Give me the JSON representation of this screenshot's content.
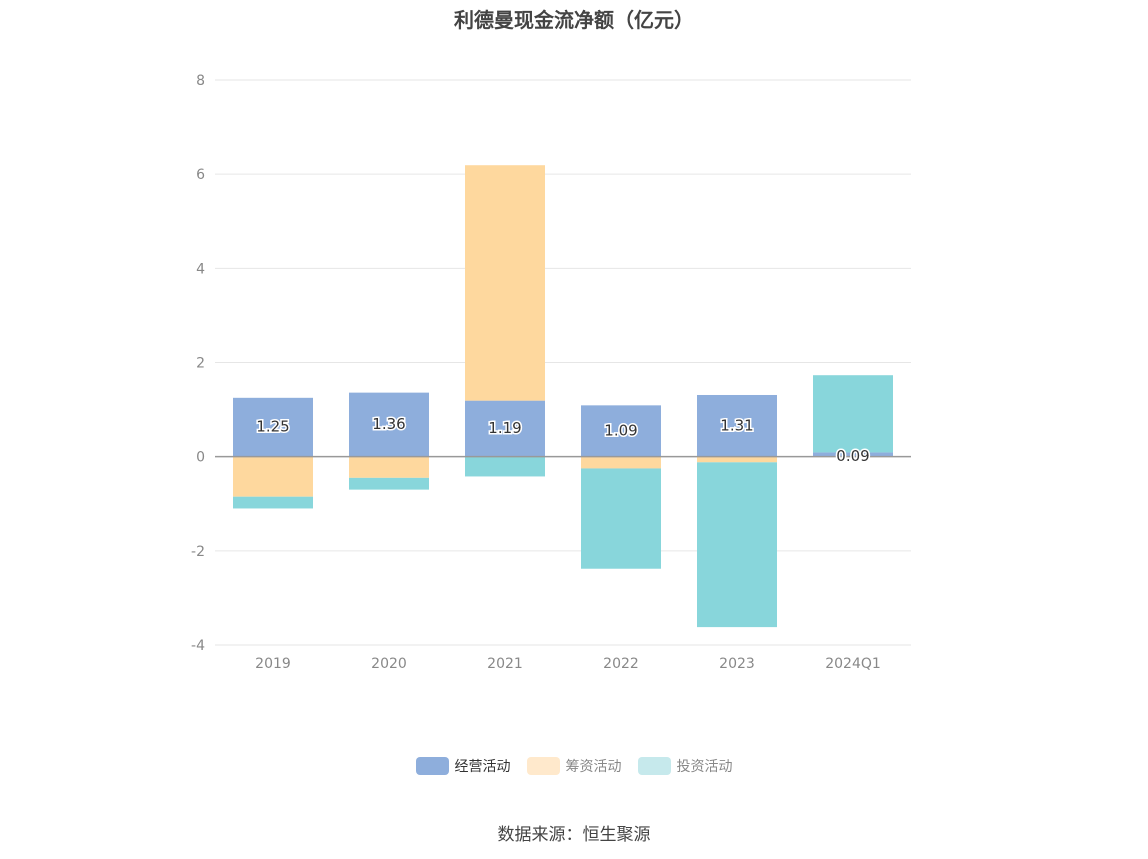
{
  "chart_data": {
    "type": "bar",
    "stacked": true,
    "title": "利德曼现金流净额（亿元）",
    "categories": [
      "2019",
      "2020",
      "2021",
      "2022",
      "2023",
      "2024Q1"
    ],
    "series": [
      {
        "name": "经营活动",
        "color": "#8eaedc",
        "values": [
          1.25,
          1.36,
          1.19,
          1.09,
          1.31,
          0.09
        ],
        "labels": [
          "1.25",
          "1.36",
          "1.19",
          "1.09",
          "1.31",
          "0.09"
        ]
      },
      {
        "name": "筹资活动",
        "color": "#fed89e",
        "values": [
          -0.85,
          -0.45,
          5.0,
          -0.25,
          -0.12,
          0.0
        ]
      },
      {
        "name": "投资活动",
        "color": "#88d6db",
        "values": [
          -0.25,
          -0.25,
          -0.42,
          -2.13,
          -3.5,
          1.64
        ]
      }
    ],
    "ylim": [
      -4,
      8
    ],
    "yticks": [
      -4,
      -2,
      0,
      2,
      4,
      6,
      8
    ],
    "ytick_labels": [
      "-4",
      "-2",
      "0",
      "2",
      "4",
      "6",
      "8"
    ],
    "grid": true,
    "legend_position": "bottom-center",
    "legend_swatch_colors": [
      "#8eaedc",
      "#ffe9cc",
      "#c6e9ec"
    ],
    "legend_text_colors": [
      "#333333",
      "#888888",
      "#888888"
    ]
  },
  "source": "数据来源：恒生聚源"
}
